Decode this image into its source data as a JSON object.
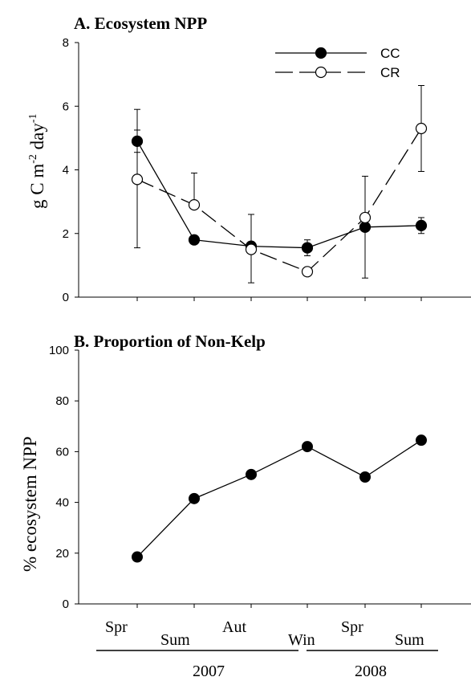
{
  "chart_data": [
    {
      "type": "line",
      "title": "A. Ecosystem NPP",
      "ylabel": "g C m",
      "ylabel_sup1": "-2",
      "ylabel_mid": " day",
      "ylabel_sup2": "-1",
      "ylim": [
        0,
        8
      ],
      "yticks": [
        "0",
        "2",
        "4",
        "6",
        "8"
      ],
      "ytick_values": [
        0,
        2,
        4,
        6,
        8
      ],
      "categories": [
        "Spr 2007",
        "Sum 2007",
        "Aut 2007",
        "Win 2007",
        "Spr 2008",
        "Sum 2008"
      ],
      "legend_position": "top-right",
      "series": [
        {
          "name": "CC",
          "marker": "filled",
          "line_style": "solid",
          "values": [
            4.9,
            1.8,
            1.6,
            1.55,
            2.2,
            2.25
          ],
          "err_low": [
            4.55,
            1.8,
            1.45,
            1.3,
            2.2,
            2.0
          ],
          "err_high": [
            5.25,
            1.8,
            1.7,
            1.8,
            2.2,
            2.5
          ]
        },
        {
          "name": "CR",
          "marker": "open",
          "line_style": "dashed",
          "values": [
            3.7,
            2.9,
            1.5,
            0.8,
            2.5,
            5.3
          ],
          "err_low": [
            1.55,
            2.9,
            0.45,
            0.8,
            0.6,
            3.95
          ],
          "err_high": [
            5.9,
            3.9,
            2.6,
            0.8,
            3.8,
            6.65
          ]
        }
      ]
    },
    {
      "type": "line",
      "title": "B. Proportion of Non-Kelp",
      "ylabel": "% ecosystem NPP",
      "ylim": [
        0,
        100
      ],
      "yticks": [
        "0",
        "20",
        "40",
        "60",
        "80",
        "100"
      ],
      "ytick_values": [
        0,
        20,
        40,
        60,
        80,
        100
      ],
      "categories": [
        "Spr 2007",
        "Sum 2007",
        "Aut 2007",
        "Win 2007",
        "Spr 2008",
        "Sum 2008"
      ],
      "series": [
        {
          "values": [
            18.5,
            41.5,
            51,
            62,
            50,
            64.5
          ]
        }
      ]
    }
  ],
  "x_axis": {
    "season_labels": [
      "Spr",
      "Sum",
      "Aut",
      "Win",
      "Spr",
      "Sum"
    ],
    "year_labels": [
      "2007",
      "2008"
    ]
  }
}
